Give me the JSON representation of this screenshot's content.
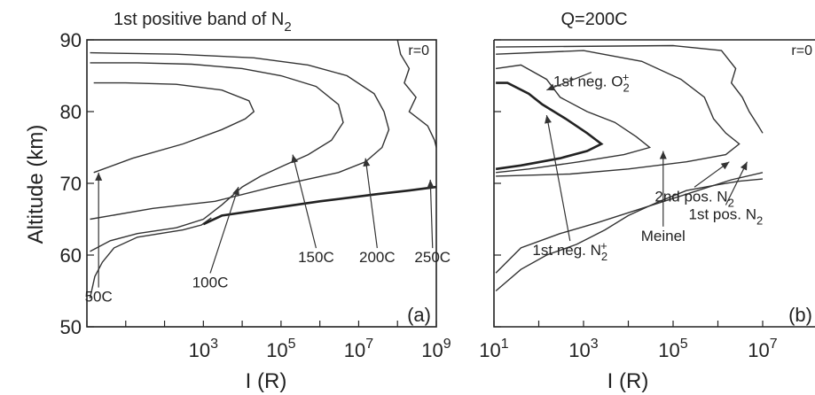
{
  "chart_data": [
    {
      "type": "line",
      "title": "1st positive band of N",
      "title_sub": "2",
      "xlabel": "I (R)",
      "ylabel": "Altitude (km)",
      "xscale": "log",
      "xlim": [
        1,
        1000000000
      ],
      "ylim": [
        50,
        90
      ],
      "xticks": [
        {
          "base": "10",
          "exp": "3",
          "value": 1000
        },
        {
          "base": "10",
          "exp": "5",
          "value": 100000
        },
        {
          "base": "10",
          "exp": "7",
          "value": 10000000
        },
        {
          "base": "10",
          "exp": "9",
          "value": 1000000000
        }
      ],
      "yticks": [
        "50",
        "60",
        "70",
        "80",
        "90"
      ],
      "corner_label": "r=0",
      "panel_label": "(a)",
      "series": [
        {
          "name": "50C",
          "points": [
            [
              1.2,
              54
            ],
            [
              1.6,
              57
            ],
            [
              2.5,
              59
            ],
            [
              5,
              61
            ],
            [
              20,
              62.5
            ],
            [
              300,
              63.5
            ],
            [
              900,
              64.2
            ],
            [
              1600,
              65.2
            ]
          ]
        },
        {
          "name": "50C",
          "points": [
            [
              1.5,
              71.5
            ],
            [
              15,
              73.5
            ],
            [
              300,
              75.5
            ],
            [
              3000,
              77.5
            ],
            [
              12000,
              79
            ],
            [
              20000,
              80
            ],
            [
              15000,
              81.5
            ],
            [
              3000,
              83
            ],
            [
              200,
              83.8
            ],
            [
              10,
              84
            ],
            [
              1.5,
              84
            ]
          ]
        },
        {
          "name": "100C",
          "points": [
            [
              1.2,
              60.5
            ],
            [
              4,
              62
            ],
            [
              20,
              63
            ],
            [
              200,
              63.8
            ],
            [
              1000,
              65
            ],
            [
              3000,
              67
            ],
            [
              10000,
              69.5
            ],
            [
              30000,
              71
            ],
            [
              120000,
              72.5
            ],
            [
              500000,
              74
            ],
            [
              2000000,
              76
            ],
            [
              4000000,
              78.5
            ],
            [
              3000000,
              81
            ],
            [
              800000,
              83.5
            ],
            [
              100000,
              85
            ],
            [
              10000,
              86
            ],
            [
              500,
              86.6
            ],
            [
              20,
              86.8
            ],
            [
              1.2,
              86.8
            ]
          ]
        },
        {
          "name": "150C",
          "points": [
            [
              1.2,
              65
            ],
            [
              50,
              66.5
            ],
            [
              2000,
              67.5
            ],
            [
              60000,
              69.5
            ],
            [
              3000000,
              71.5
            ],
            [
              15000000,
              73
            ],
            [
              40000000,
              75
            ],
            [
              60000000,
              77.5
            ],
            [
              45000000,
              80
            ],
            [
              25000000,
              82.5
            ],
            [
              5000000,
              85
            ],
            [
              500000,
              86.5
            ],
            [
              20000,
              87.5
            ],
            [
              200,
              88
            ],
            [
              1.2,
              88.2
            ]
          ]
        },
        {
          "name": "200C",
          "points": [
            [
              1000,
              64.3
            ],
            [
              3000,
              65.5
            ],
            [
              1000000,
              67.5
            ],
            [
              30000000,
              68.5
            ],
            [
              200000000,
              69
            ],
            [
              1000000000,
              69.5
            ]
          ]
        },
        {
          "name": "250C",
          "points": [
            [
              100000000,
              90
            ],
            [
              120000000,
              88
            ],
            [
              200000000,
              86
            ],
            [
              150000000,
              84
            ],
            [
              300000000,
              82
            ],
            [
              200000000,
              80
            ],
            [
              600000000,
              78
            ],
            [
              900000000,
              76
            ],
            [
              1000000000,
              75
            ]
          ]
        }
      ],
      "annotations": [
        {
          "text": "50C",
          "value_x": 2,
          "value_y": 53.5,
          "arrow_to": [
            2,
            71.5
          ]
        },
        {
          "text": "100C",
          "value_x": 1500,
          "value_y": 55.5,
          "arrow_to": [
            8000,
            69.5
          ]
        },
        {
          "text": "150C",
          "value_x": 800000,
          "value_y": 59,
          "arrow_to": [
            200000,
            74
          ]
        },
        {
          "text": "200C",
          "value_x": 30000000,
          "value_y": 59,
          "arrow_to": [
            15000000,
            73.5
          ]
        },
        {
          "text": "250C",
          "value_x": 800000000,
          "value_y": 59,
          "arrow_to": [
            700000000,
            70.5
          ]
        }
      ]
    },
    {
      "type": "line",
      "title": "Q=200C",
      "xlabel": "I (R)",
      "xscale": "log",
      "xlim": [
        10,
        10000000
      ],
      "ylim": [
        50,
        90
      ],
      "xticks": [
        {
          "base": "10",
          "exp": "1",
          "value": 10
        },
        {
          "base": "10",
          "exp": "3",
          "value": 1000
        },
        {
          "base": "10",
          "exp": "5",
          "value": 100000
        },
        {
          "base": "10",
          "exp": "7",
          "value": 10000000
        }
      ],
      "corner_label": "r=0",
      "panel_label": "(b)",
      "series": [
        {
          "name": "1st neg. O2+",
          "points": [
            [
              11,
              84
            ],
            [
              20,
              84
            ],
            [
              60,
              82.5
            ],
            [
              120,
              81
            ],
            [
              400,
              79
            ],
            [
              1200,
              77
            ],
            [
              2500,
              75.5
            ],
            [
              1200,
              74.5
            ],
            [
              300,
              73.5
            ],
            [
              40,
              72.5
            ],
            [
              11,
              72
            ]
          ]
        },
        {
          "name": "1st neg. N2+",
          "points": [
            [
              11,
              86
            ],
            [
              40,
              86.5
            ],
            [
              150,
              84.5
            ],
            [
              300,
              82
            ],
            [
              1200,
              80
            ],
            [
              5000,
              78.5
            ],
            [
              15000,
              76.5
            ],
            [
              30000,
              75
            ],
            [
              8000,
              74
            ],
            [
              800,
              73
            ],
            [
              60,
              72
            ],
            [
              11,
              71.5
            ]
          ]
        },
        {
          "name": "Meinel",
          "points": [
            [
              11,
              88
            ],
            [
              1000,
              88.5
            ],
            [
              20000,
              87
            ],
            [
              150000,
              84.5
            ],
            [
              500000,
              82
            ],
            [
              800000,
              79
            ],
            [
              1500000,
              77
            ],
            [
              3000000,
              75.5
            ],
            [
              1500000,
              74
            ],
            [
              200000,
              73
            ],
            [
              10000,
              72
            ],
            [
              500,
              71.3
            ],
            [
              11,
              71
            ]
          ]
        },
        {
          "name": "2nd pos. N2",
          "points": [
            [
              11,
              55
            ],
            [
              40,
              58
            ],
            [
              150,
              60
            ],
            [
              700,
              61.5
            ],
            [
              3000,
              63.5
            ],
            [
              10000,
              65.5
            ],
            [
              50000,
              67.5
            ],
            [
              200000,
              69
            ],
            [
              1000000,
              69.8
            ],
            [
              3000000,
              70.3
            ],
            [
              10000000,
              70.6
            ]
          ]
        },
        {
          "name": "1st pos. N2",
          "points": [
            [
              11,
              89
            ],
            [
              100000,
              89.2
            ],
            [
              1200000,
              88.5
            ],
            [
              2500000,
              86
            ],
            [
              2000000,
              84
            ],
            [
              3500000,
              82
            ],
            [
              5000000,
              80
            ],
            [
              8000000,
              78
            ],
            [
              10000000,
              77
            ]
          ]
        },
        {
          "name": "",
          "points": [
            [
              11,
              57.5
            ],
            [
              40,
              61
            ],
            [
              300,
              63
            ],
            [
              2000,
              64.5
            ],
            [
              20000,
              66.5
            ],
            [
              200000,
              68.5
            ],
            [
              2000000,
              70.5
            ],
            [
              10000000,
              71.5
            ]
          ]
        }
      ],
      "annotations": [
        {
          "text": "1st neg. O",
          "sub": "2",
          "sup": "+",
          "value_x": 1500,
          "value_y": 83.5,
          "arrow_to": [
            150,
            83
          ]
        },
        {
          "text": "Meinel",
          "value_x": 60000,
          "value_y": 62,
          "arrow_to": [
            60000,
            74.5
          ]
        },
        {
          "text": "2nd pos. N",
          "sub": "2",
          "value_x": 300000,
          "value_y": 67.5,
          "arrow_to": [
            1800000,
            73
          ]
        },
        {
          "text": "1st pos. N",
          "sub": "2",
          "value_x": 1500000,
          "value_y": 65,
          "arrow_to": [
            4500000,
            73
          ]
        },
        {
          "text": "1st neg. N",
          "sub": "2",
          "sup": "+",
          "value_x": 500,
          "value_y": 60,
          "arrow_to": [
            150,
            79.5
          ]
        }
      ]
    }
  ]
}
